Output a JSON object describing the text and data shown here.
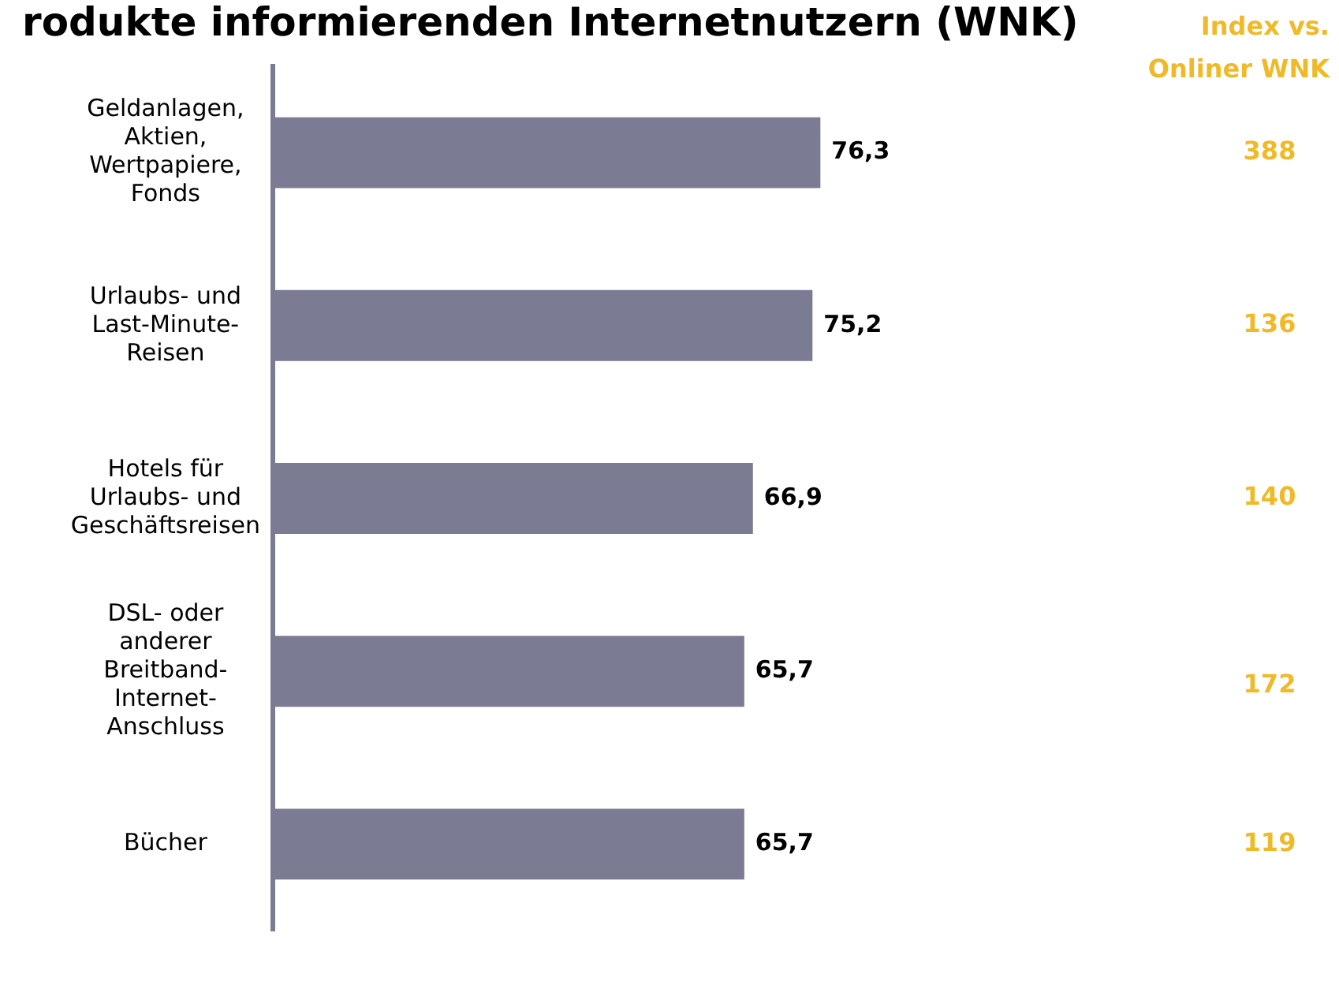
{
  "chart_data": {
    "type": "bar",
    "orientation": "horizontal",
    "title": "rodukte informierenden Internetnutzern (WNK)",
    "categories": [
      "Geldanlagen,\nAktien,\nWertpapiere,\nFonds",
      "Urlaubs- und\nLast-Minute-\nReisen",
      "Hotels für\nUrlaubs- und\nGeschäftsreisen",
      "DSL- oder\nanderer\nBreitband-\nInternet-\nAnschluss",
      "Bücher"
    ],
    "values": [
      76.3,
      75.2,
      66.9,
      65.7,
      65.7
    ],
    "value_labels": [
      "76,3",
      "75,2",
      "66,9",
      "65,7",
      "65,7"
    ],
    "color": "#7b7b93",
    "tick_labels": "y",
    "annotations": [
      "Index vs.\nOnliner WNK",
      "388",
      "136",
      "140",
      "172",
      "119"
    ]
  }
}
